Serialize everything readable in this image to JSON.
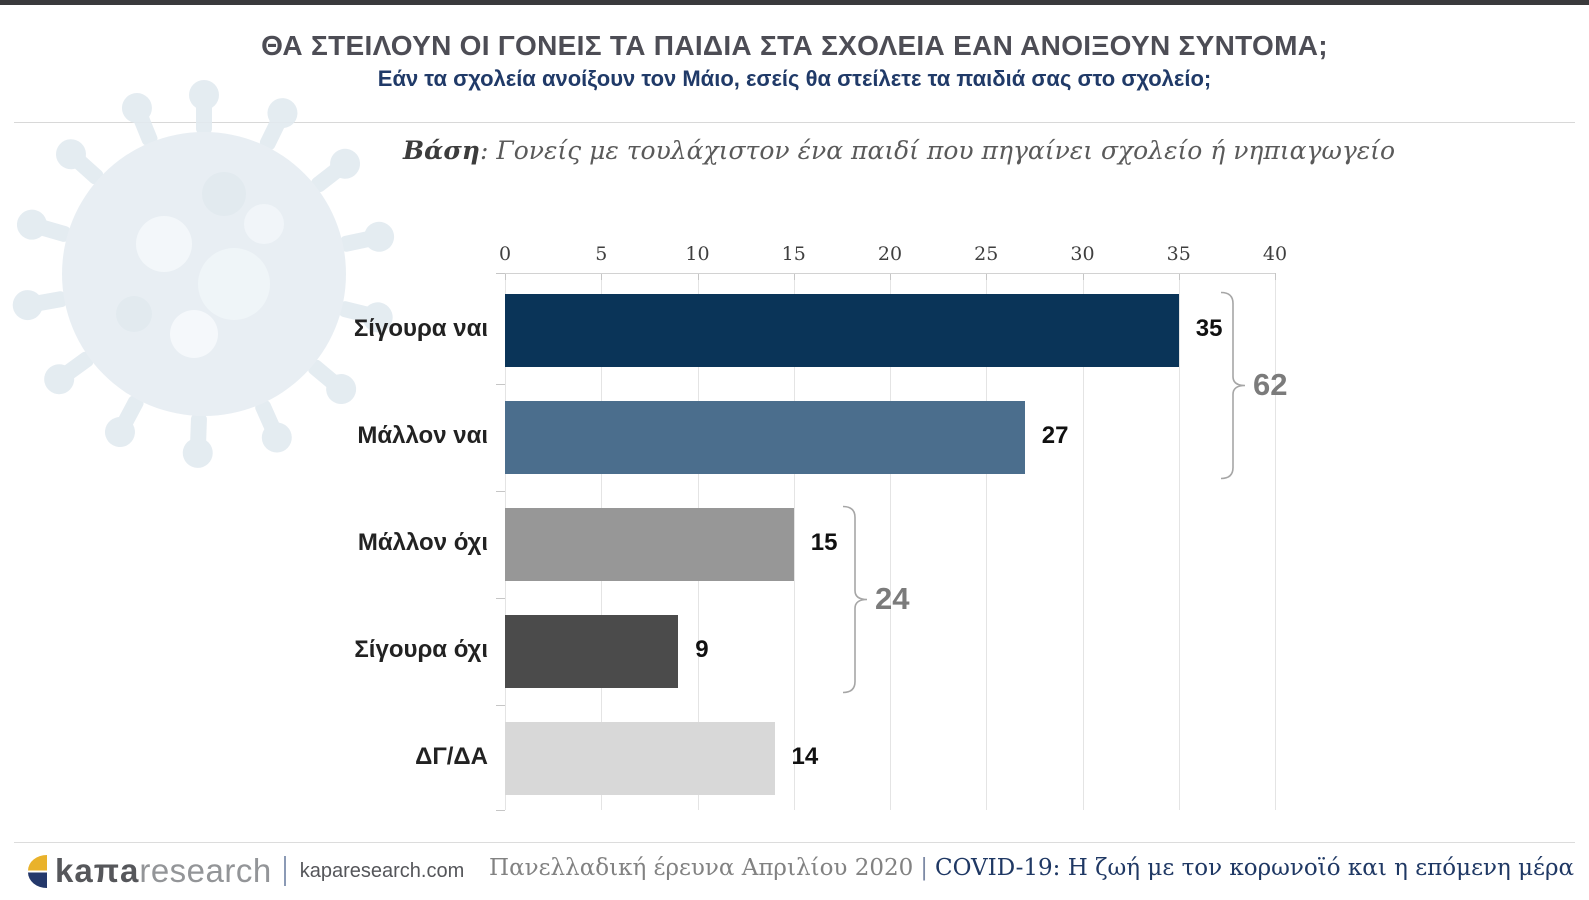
{
  "page": {
    "top_bar_color": "#3a3a3c",
    "background": "#ffffff"
  },
  "header": {
    "title": "ΘΑ ΣΤΕΙΛΟΥΝ ΟΙ ΓΟΝΕΙΣ ΤΑ ΠΑΙΔΙΑ ΣΤΑ ΣΧΟΛΕΙΑ ΕΑΝ ΑΝΟΙΞΟΥΝ ΣΥΝΤΟΜΑ;",
    "title_color": "#4d4d55",
    "subtitle": "Εάν τα σχολεία ανοίξουν τον Μάιο, εσείς θα στείλετε τα παιδιά σας στο σχολείο;",
    "subtitle_color": "#203a68"
  },
  "base_note": {
    "label": "Βάση",
    "text": ": Γονείς με τουλάχιστον ένα παιδί που πηγαίνει σχολείο ή νηπιαγωγείο"
  },
  "chart_data": {
    "type": "bar",
    "orientation": "horizontal",
    "categories": [
      "Σίγουρα ναι",
      "Μάλλον ναι",
      "Μάλλον όχι",
      "Σίγουρα όχι",
      "ΔΓ/ΔΑ"
    ],
    "values": [
      35,
      27,
      15,
      9,
      14
    ],
    "bar_colors": [
      "#0a3458",
      "#4b6e8d",
      "#979797",
      "#4b4b4b",
      "#d8d8d8"
    ],
    "xlim": [
      0,
      40
    ],
    "x_ticks": [
      0,
      5,
      10,
      15,
      20,
      25,
      30,
      35,
      40
    ],
    "grid": true,
    "value_labels": true,
    "axis_position": "top",
    "groups": [
      {
        "label": "62",
        "from_index": 0,
        "to_index": 1
      },
      {
        "label": "24",
        "from_index": 2,
        "to_index": 3
      }
    ],
    "group_label_color": "#7b7b7b",
    "bracket_color": "#a6a6a6"
  },
  "footer": {
    "logo_bold": "kaπa",
    "logo_light": "research",
    "website": "kaparesearch.com",
    "survey": "Πανελλαδική έρευνα Απριλίου 2020",
    "separator": "|",
    "report": "COVID-19: Η ζωή με τον κορωνοϊό και η επόμενη μέρα",
    "logo_colors": {
      "yellow": "#e9b22b",
      "navy": "#24386b"
    }
  }
}
